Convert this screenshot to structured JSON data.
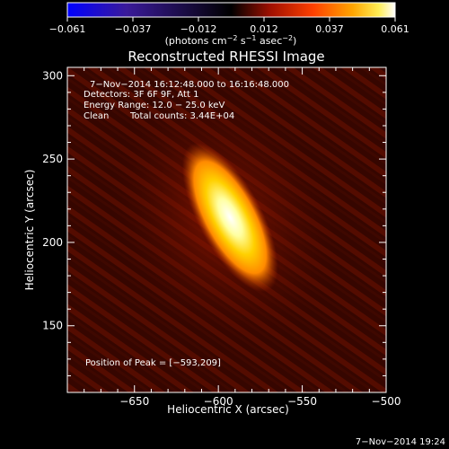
{
  "chart_data": {
    "type": "heatmap",
    "title": "Reconstructed RHESSI Image",
    "xlabel": "Heliocentric X (arcsec)",
    "ylabel": "Heliocentric Y (arcsec)",
    "xlim": [
      -690,
      -500
    ],
    "ylim": [
      110,
      305
    ],
    "xticks": [
      -650,
      -600,
      -550,
      -500
    ],
    "yticks": [
      150,
      200,
      250,
      300
    ],
    "colorbar": {
      "ticks": [
        "−0.061",
        "−0.037",
        "−0.012",
        "0.012",
        "0.037",
        "0.061"
      ],
      "range": [
        -0.061,
        0.061
      ],
      "unit_main": "(photons cm",
      "unit_sup1": "−2",
      "unit_mid": " s",
      "unit_sup2": "−1",
      "unit_end": " asec",
      "unit_sup3": "−2",
      "unit_close": ")"
    },
    "annotations": {
      "time_range": "7−Nov−2014 16:12:48.000 to 16:16:48.000",
      "detectors": "Detectors: 3F 6F 9F, Att 1",
      "energy": "Energy Range: 12.0 − 25.0 keV",
      "method": "Clean",
      "counts": "Total counts: 3.44E+04",
      "peak": "Position of Peak = [−593,209]"
    },
    "source": {
      "peak_x": -593,
      "peak_y": 209,
      "peak_value": 0.061,
      "major_axis_arcsec": 34,
      "minor_axis_arcsec": 10,
      "orientation": "tilted, upper-left to lower-right"
    },
    "colormap": [
      "#0000ff",
      "#000000",
      "#ff0000",
      "#ffa500",
      "#ffff66",
      "#ffffff"
    ],
    "timestamp": "7−Nov−2014 19:24"
  }
}
